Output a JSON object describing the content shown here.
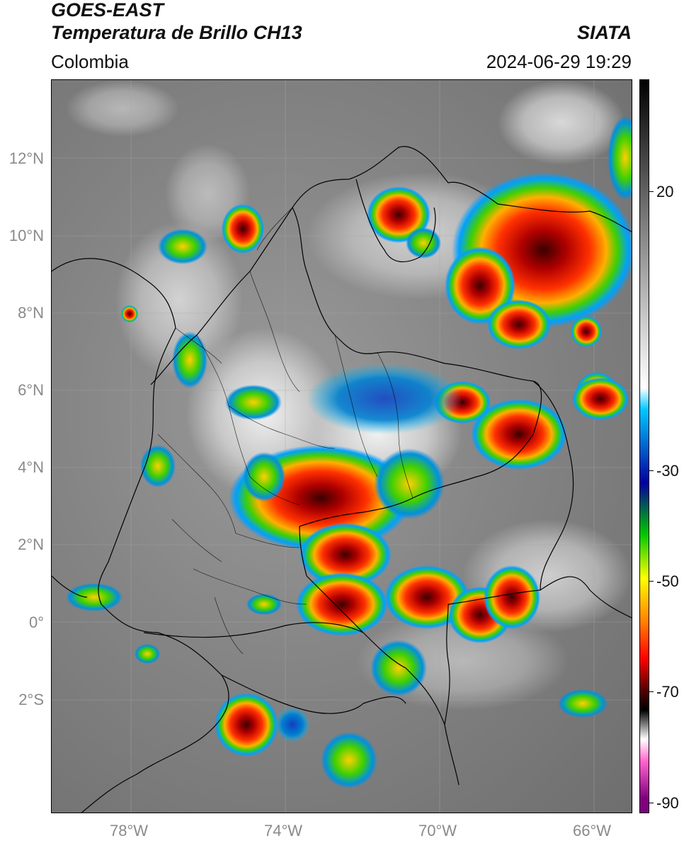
{
  "header": {
    "satellite": "GOES-EAST",
    "product": "Temperatura de Brillo CH13",
    "region": "Colombia",
    "agency": "SIATA",
    "datetime": "2024-06-29 19:29"
  },
  "map": {
    "lat_ticks": [
      "12°N",
      "10°N",
      "8°N",
      "6°N",
      "4°N",
      "2°N",
      "0°",
      "2°S"
    ],
    "lon_ticks": [
      "78°W",
      "74°W",
      "70°W",
      "66°W"
    ]
  },
  "colorbar": {
    "ticks": [
      "20",
      "-30",
      "-50",
      "-70",
      "-90"
    ],
    "colors": [
      "#000000",
      "#808080",
      "#ffffff",
      "#00c8ff",
      "#0000a0",
      "#00c800",
      "#ffff00",
      "#ff8000",
      "#ff0000",
      "#600000",
      "#000000",
      "#ffffff",
      "#ff66cc",
      "#800080"
    ]
  },
  "colors": {
    "land_gray": "#858585",
    "border": "#000000"
  }
}
